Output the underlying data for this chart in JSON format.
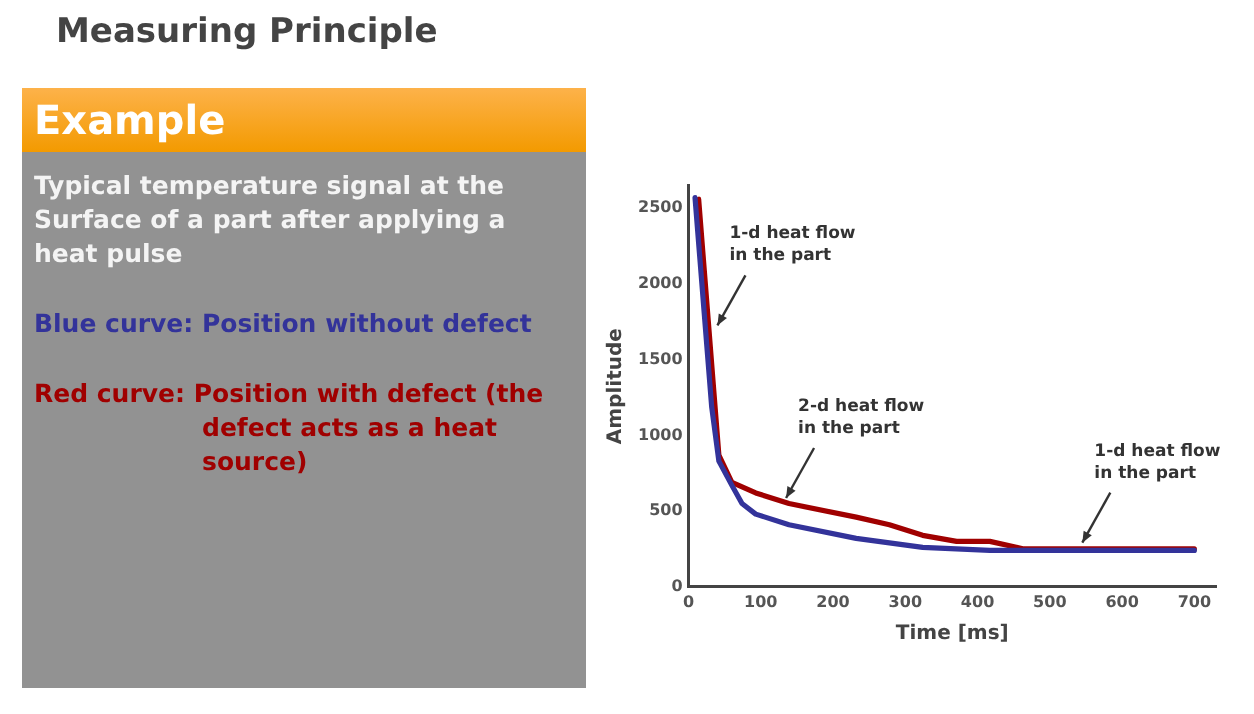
{
  "chart_data": {
    "type": "line",
    "title": "Measuring Principle",
    "subtitle": "Example",
    "xlabel": "Time [ms]",
    "ylabel": "Amplitude",
    "xlim": [
      0,
      730
    ],
    "ylim": [
      0,
      2650
    ],
    "xticks": [
      0,
      100,
      200,
      300,
      400,
      500,
      600,
      700
    ],
    "yticks": [
      0,
      500,
      1000,
      1500,
      2000,
      2500
    ],
    "grid": false,
    "legend": false,
    "marker": "none",
    "line_style": "solid",
    "series": [
      {
        "color": "#33339a",
        "x": [
          9,
          32,
          42,
          60,
          74,
          93,
          139,
          232,
          324,
          417,
          510,
          700
        ],
        "values": [
          2570,
          1190,
          830,
          670,
          550,
          480,
          410,
          320,
          260,
          240,
          240,
          240
        ]
      },
      {
        "color": "#a00000",
        "x": [
          14,
          42,
          60,
          93,
          139,
          232,
          278,
          324,
          371,
          417,
          464,
          510,
          603,
          700
        ],
        "values": [
          2560,
          870,
          690,
          620,
          550,
          460,
          410,
          340,
          300,
          300,
          250,
          250,
          250,
          250
        ]
      }
    ],
    "annotations": [
      "Typical temperature signal at the Surface of a part after applying a heat pulse",
      "Blue curve: Position without defect",
      "Red curve: Position with defect (the defect acts as a heat source)",
      {
        "text": "1-d heat flow\nin the part",
        "x": 40,
        "y": 1700
      },
      {
        "text": "2-d heat flow\nin the part",
        "x": 135,
        "y": 560
      },
      {
        "text": "1-d heat flow\nin the part",
        "x": 545,
        "y": 265
      }
    ]
  }
}
